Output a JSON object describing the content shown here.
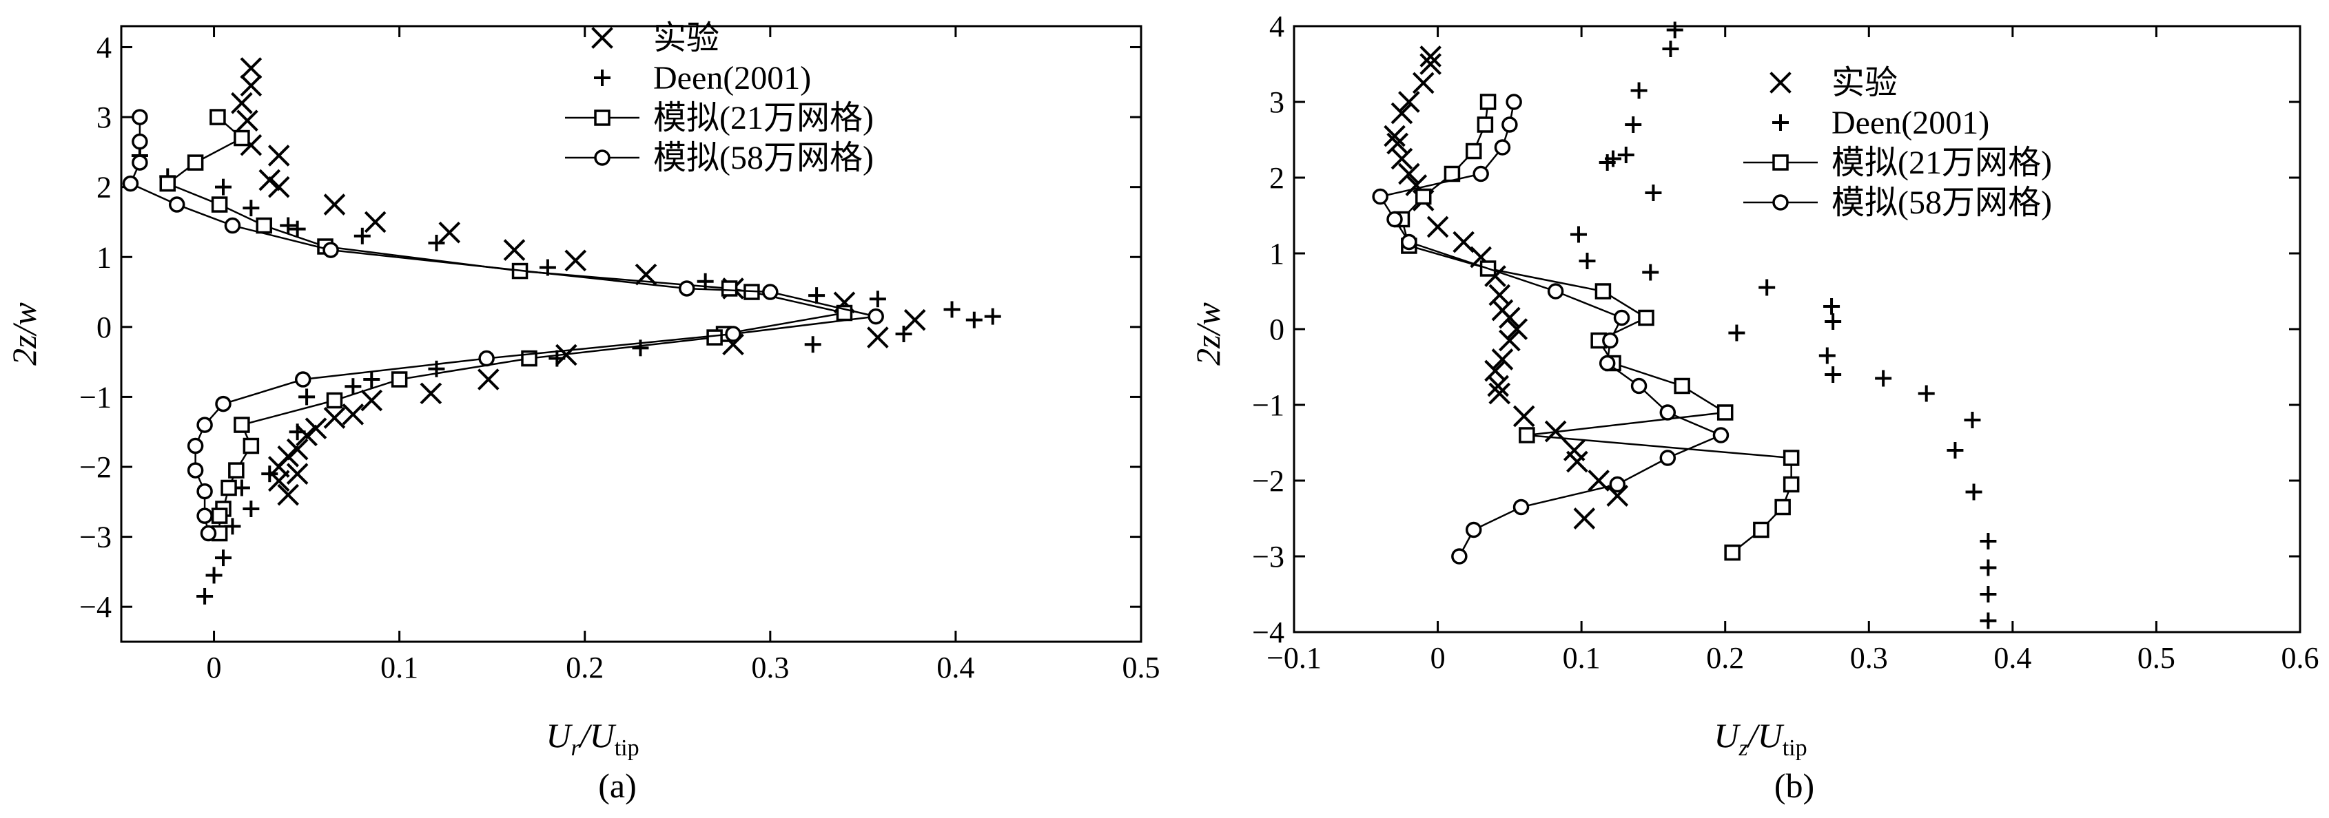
{
  "chart_data": [
    {
      "type": "scatter",
      "panel_label": "(a)",
      "xlabel": {
        "main": "U",
        "sub1": "r",
        "sep": "/U",
        "sub2": "tip"
      },
      "ylabel": "2z/w",
      "xlim": [
        -0.05,
        0.5
      ],
      "ylim": [
        -4.5,
        4.3
      ],
      "xticks": [
        0,
        0.1,
        0.2,
        0.3,
        0.4,
        0.5
      ],
      "xtick_labels": [
        "0",
        "0.1",
        "0.2",
        "0.3",
        "0.4",
        "0.5"
      ],
      "yticks": [
        -4,
        -3,
        -2,
        -1,
        0,
        1,
        2,
        3,
        4
      ],
      "ytick_labels": [
        "−4",
        "−3",
        "−2",
        "−1",
        "0",
        "1",
        "2",
        "3",
        "4"
      ],
      "legend": {
        "position": "top-right",
        "entries": [
          "实验",
          "Deen(2001)",
          "模拟(21万网格)",
          "模拟(58万网格)"
        ]
      },
      "series": [
        {
          "name": "实验",
          "marker": "x",
          "line": false,
          "x": [
            0.02,
            0.02,
            0.015,
            0.018,
            0.02,
            0.035,
            0.03,
            0.035,
            0.065,
            0.087,
            0.127,
            0.162,
            0.195,
            0.233,
            0.28,
            0.34,
            0.378,
            0.358,
            0.28,
            0.19,
            0.148,
            0.117,
            0.085,
            0.075,
            0.065,
            0.055,
            0.05,
            0.045,
            0.04,
            0.035,
            0.045,
            0.035,
            0.04
          ],
          "y": [
            3.7,
            3.45,
            3.2,
            2.95,
            2.6,
            2.45,
            2.1,
            2.0,
            1.75,
            1.5,
            1.35,
            1.1,
            0.95,
            0.75,
            0.55,
            0.35,
            0.1,
            -0.15,
            -0.25,
            -0.4,
            -0.75,
            -0.95,
            -1.05,
            -1.25,
            -1.3,
            -1.45,
            -1.55,
            -1.75,
            -1.85,
            -2.0,
            -2.1,
            -2.2,
            -2.4
          ]
        },
        {
          "name": "Deen(2001)",
          "marker": "+",
          "line": false,
          "x": [
            -0.04,
            -0.025,
            0.005,
            0.02,
            0.04,
            0.045,
            0.08,
            0.12,
            0.18,
            0.265,
            0.325,
            0.358,
            0.398,
            0.41,
            0.42,
            0.372,
            0.323,
            0.23,
            0.185,
            0.12,
            0.085,
            0.075,
            0.05,
            0.045,
            0.03,
            0.015,
            0.02,
            0.01,
            0.005,
            0.0,
            -0.005
          ],
          "y": [
            2.45,
            2.15,
            2.0,
            1.7,
            1.45,
            1.4,
            1.3,
            1.2,
            0.85,
            0.65,
            0.45,
            0.4,
            0.25,
            0.1,
            0.15,
            -0.1,
            -0.25,
            -0.3,
            -0.45,
            -0.6,
            -0.75,
            -0.85,
            -1.0,
            -1.5,
            -2.1,
            -2.3,
            -2.6,
            -2.85,
            -3.3,
            -3.55,
            -3.85
          ]
        },
        {
          "name": "模拟(21万网格)",
          "marker": "square",
          "line": true,
          "x": [
            0.002,
            0.015,
            -0.01,
            -0.025,
            0.003,
            0.027,
            0.06,
            0.165,
            0.278,
            0.29,
            0.34,
            0.275,
            0.27,
            0.17,
            0.1,
            0.065,
            0.015,
            0.02,
            0.012,
            0.008,
            0.005,
            0.003,
            0.003
          ],
          "y": [
            3.0,
            2.7,
            2.35,
            2.05,
            1.75,
            1.45,
            1.15,
            0.8,
            0.55,
            0.5,
            0.2,
            -0.1,
            -0.15,
            -0.45,
            -0.75,
            -1.05,
            -1.4,
            -1.7,
            -2.05,
            -2.3,
            -2.6,
            -2.7,
            -2.95
          ]
        },
        {
          "name": "模拟(58万网格)",
          "marker": "circle",
          "line": true,
          "x": [
            -0.04,
            -0.04,
            -0.04,
            -0.045,
            -0.02,
            0.01,
            0.063,
            0.255,
            0.3,
            0.357,
            0.28,
            0.147,
            0.048,
            0.005,
            -0.005,
            -0.01,
            -0.01,
            -0.005,
            -0.005,
            -0.003
          ],
          "y": [
            3.0,
            2.65,
            2.35,
            2.05,
            1.75,
            1.45,
            1.1,
            0.55,
            0.5,
            0.15,
            -0.1,
            -0.45,
            -0.75,
            -1.1,
            -1.4,
            -1.7,
            -2.05,
            -2.35,
            -2.7,
            -2.95
          ]
        }
      ]
    },
    {
      "type": "scatter",
      "panel_label": "(b)",
      "xlabel": {
        "main": "U",
        "sub1": "z",
        "sep": "/U",
        "sub2": "tip"
      },
      "ylabel": "2z/w",
      "xlim": [
        -0.1,
        0.6
      ],
      "ylim": [
        -4.0,
        4.0
      ],
      "xticks": [
        -0.1,
        0,
        0.1,
        0.2,
        0.3,
        0.4,
        0.5,
        0.6
      ],
      "xtick_labels": [
        "−0.1",
        "0",
        "0.1",
        "0.2",
        "0.3",
        "0.4",
        "0.5",
        "0.6"
      ],
      "yticks": [
        -4,
        -3,
        -2,
        -1,
        0,
        1,
        2,
        3,
        4
      ],
      "ytick_labels": [
        "−4",
        "−3",
        "−2",
        "−1",
        "0",
        "1",
        "2",
        "3",
        "4"
      ],
      "legend": {
        "position": "top-right",
        "entries": [
          "实验",
          "Deen(2001)",
          "模拟(21万网格)",
          "模拟(58万网格)"
        ]
      },
      "series": [
        {
          "name": "实验",
          "marker": "x",
          "line": false,
          "x": [
            -0.005,
            -0.005,
            -0.01,
            -0.02,
            -0.025,
            -0.03,
            -0.028,
            -0.025,
            -0.02,
            -0.015,
            -0.01,
            0.0,
            0.018,
            0.03,
            0.04,
            0.043,
            0.045,
            0.05,
            0.055,
            0.05,
            0.045,
            0.04,
            0.042,
            0.043,
            0.06,
            0.082,
            0.095,
            0.097,
            0.112,
            0.125,
            0.102
          ],
          "y": [
            3.6,
            3.5,
            3.25,
            3.0,
            2.85,
            2.55,
            2.45,
            2.25,
            2.05,
            1.9,
            1.7,
            1.35,
            1.15,
            0.95,
            0.7,
            0.45,
            0.25,
            0.15,
            0.0,
            -0.15,
            -0.4,
            -0.55,
            -0.75,
            -0.85,
            -1.15,
            -1.35,
            -1.6,
            -1.75,
            -2.0,
            -2.2,
            -2.5
          ]
        },
        {
          "name": "Deen(2001)",
          "marker": "+",
          "line": false,
          "x": [
            0.165,
            0.162,
            0.14,
            0.136,
            0.131,
            0.122,
            0.118,
            0.15,
            0.098,
            0.104,
            0.148,
            0.229,
            0.274,
            0.275,
            0.208,
            0.271,
            0.275,
            0.31,
            0.34,
            0.372,
            0.36,
            0.373,
            0.383,
            0.383,
            0.383,
            0.383
          ],
          "y": [
            3.95,
            3.7,
            3.15,
            2.7,
            2.3,
            2.25,
            2.2,
            1.8,
            1.25,
            0.9,
            0.75,
            0.55,
            0.3,
            0.1,
            -0.05,
            -0.35,
            -0.6,
            -0.65,
            -0.85,
            -1.2,
            -1.6,
            -2.15,
            -2.8,
            -3.15,
            -3.5,
            -3.85
          ]
        },
        {
          "name": "模拟(21万网格)",
          "marker": "square",
          "line": true,
          "x": [
            0.035,
            0.033,
            0.025,
            0.01,
            -0.01,
            -0.025,
            -0.02,
            0.035,
            0.115,
            0.145,
            0.112,
            0.122,
            0.17,
            0.2,
            0.062,
            0.246,
            0.246,
            0.24,
            0.225,
            0.205
          ],
          "y": [
            3.0,
            2.7,
            2.35,
            2.05,
            1.75,
            1.45,
            1.1,
            0.8,
            0.5,
            0.15,
            -0.15,
            -0.45,
            -0.75,
            -1.1,
            -1.4,
            -1.7,
            -2.05,
            -2.35,
            -2.65,
            -2.95
          ]
        },
        {
          "name": "模拟(58万网格)",
          "marker": "circle",
          "line": true,
          "x": [
            0.053,
            0.05,
            0.045,
            0.03,
            -0.04,
            -0.03,
            -0.02,
            0.082,
            0.128,
            0.12,
            0.118,
            0.14,
            0.16,
            0.197,
            0.16,
            0.125,
            0.058,
            0.025,
            0.015
          ],
          "y": [
            3.0,
            2.7,
            2.4,
            2.05,
            1.75,
            1.45,
            1.15,
            0.5,
            0.15,
            -0.15,
            -0.45,
            -0.75,
            -1.1,
            -1.4,
            -1.7,
            -2.05,
            -2.35,
            -2.65,
            -3.0
          ]
        }
      ]
    }
  ]
}
